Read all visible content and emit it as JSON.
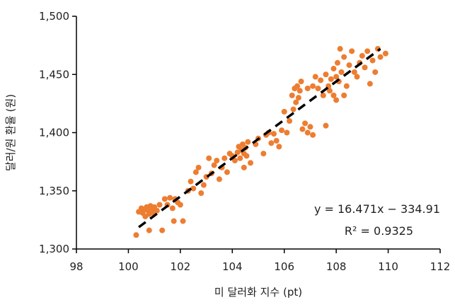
{
  "chart_data": {
    "type": "scatter",
    "xlabel": "미 달러화 지수 (pt)",
    "ylabel": "달러/원 환율 (원)",
    "xlim": [
      98,
      112
    ],
    "ylim": [
      1300,
      1500
    ],
    "x_ticks": [
      98,
      100,
      102,
      104,
      106,
      108,
      110,
      112
    ],
    "x_tick_labels": [
      "98",
      "100",
      "102",
      "104",
      "106",
      "108",
      "110",
      "112"
    ],
    "y_ticks": [
      1300,
      1350,
      1400,
      1450,
      1500
    ],
    "y_tick_labels": [
      "1,300",
      "1,350",
      "1,400",
      "1,450",
      "1,500"
    ],
    "grid": false,
    "legend": "none",
    "colors": {
      "points": "#ED7D31",
      "trendline": "#000000",
      "axis": "#000000"
    },
    "series": [
      {
        "points": [
          [
            100.3,
            1312
          ],
          [
            100.4,
            1332
          ],
          [
            100.5,
            1335
          ],
          [
            100.55,
            1331
          ],
          [
            100.6,
            1334
          ],
          [
            100.65,
            1328
          ],
          [
            100.7,
            1336
          ],
          [
            100.75,
            1333
          ],
          [
            100.8,
            1330
          ],
          [
            100.85,
            1337
          ],
          [
            100.9,
            1334
          ],
          [
            100.95,
            1331
          ],
          [
            101.0,
            1336
          ],
          [
            101.1,
            1333
          ],
          [
            101.2,
            1338
          ],
          [
            101.3,
            1316
          ],
          [
            100.8,
            1316
          ],
          [
            101.4,
            1343
          ],
          [
            101.5,
            1338
          ],
          [
            101.6,
            1344
          ],
          [
            101.7,
            1335
          ],
          [
            101.8,
            1343
          ],
          [
            101.9,
            1340
          ],
          [
            102.0,
            1338
          ],
          [
            101.75,
            1324
          ],
          [
            102.1,
            1324
          ],
          [
            102.3,
            1350
          ],
          [
            102.4,
            1358
          ],
          [
            102.5,
            1352
          ],
          [
            102.6,
            1366
          ],
          [
            102.7,
            1370
          ],
          [
            102.8,
            1348
          ],
          [
            102.9,
            1355
          ],
          [
            103.0,
            1362
          ],
          [
            103.1,
            1378
          ],
          [
            103.2,
            1365
          ],
          [
            103.3,
            1372
          ],
          [
            103.4,
            1376
          ],
          [
            103.5,
            1360
          ],
          [
            103.6,
            1370
          ],
          [
            103.7,
            1378
          ],
          [
            103.8,
            1366
          ],
          [
            103.9,
            1382
          ],
          [
            104.0,
            1380
          ],
          [
            104.1,
            1376
          ],
          [
            104.2,
            1383
          ],
          [
            104.25,
            1388
          ],
          [
            104.3,
            1378
          ],
          [
            104.35,
            1385
          ],
          [
            104.4,
            1390
          ],
          [
            104.45,
            1382
          ],
          [
            104.5,
            1387
          ],
          [
            104.55,
            1380
          ],
          [
            104.6,
            1392
          ],
          [
            104.45,
            1370
          ],
          [
            104.7,
            1374
          ],
          [
            104.9,
            1390
          ],
          [
            105.0,
            1395
          ],
          [
            105.2,
            1382
          ],
          [
            105.3,
            1398
          ],
          [
            105.4,
            1400
          ],
          [
            105.5,
            1391
          ],
          [
            105.6,
            1399
          ],
          [
            105.7,
            1393
          ],
          [
            105.8,
            1388
          ],
          [
            105.9,
            1402
          ],
          [
            106.0,
            1418
          ],
          [
            106.1,
            1400
          ],
          [
            106.2,
            1410
          ],
          [
            106.3,
            1432
          ],
          [
            106.35,
            1420
          ],
          [
            106.4,
            1438
          ],
          [
            106.45,
            1426
          ],
          [
            106.5,
            1440
          ],
          [
            106.55,
            1430
          ],
          [
            106.6,
            1436
          ],
          [
            106.65,
            1444
          ],
          [
            106.7,
            1403
          ],
          [
            106.8,
            1408
          ],
          [
            106.9,
            1400
          ],
          [
            107.0,
            1405
          ],
          [
            107.1,
            1398
          ],
          [
            106.9,
            1438
          ],
          [
            107.1,
            1440
          ],
          [
            107.2,
            1448
          ],
          [
            107.3,
            1438
          ],
          [
            107.4,
            1445
          ],
          [
            107.5,
            1432
          ],
          [
            107.6,
            1406
          ],
          [
            107.6,
            1450
          ],
          [
            107.7,
            1440
          ],
          [
            107.8,
            1446
          ],
          [
            107.9,
            1455
          ],
          [
            108.0,
            1448
          ],
          [
            108.05,
            1460
          ],
          [
            108.1,
            1444
          ],
          [
            108.15,
            1472
          ],
          [
            108.2,
            1452
          ],
          [
            108.3,
            1465
          ],
          [
            108.4,
            1440
          ],
          [
            108.5,
            1458
          ],
          [
            108.6,
            1470
          ],
          [
            108.7,
            1452
          ],
          [
            108.8,
            1448
          ],
          [
            108.9,
            1460
          ],
          [
            109.0,
            1466
          ],
          [
            109.1,
            1456
          ],
          [
            109.2,
            1470
          ],
          [
            109.3,
            1442
          ],
          [
            109.4,
            1462
          ],
          [
            109.5,
            1452
          ],
          [
            109.6,
            1472
          ],
          [
            109.7,
            1465
          ],
          [
            109.9,
            1468
          ],
          [
            108.3,
            1432
          ],
          [
            107.9,
            1432
          ],
          [
            108.0,
            1428
          ],
          [
            107.75,
            1436
          ]
        ]
      }
    ],
    "trendline": {
      "slope": 16.471,
      "intercept": -334.91,
      "x_range": [
        100.4,
        109.7
      ],
      "equation_label": "y = 16.471x − 334.91",
      "r2_label": "R² = 0.9325"
    }
  }
}
